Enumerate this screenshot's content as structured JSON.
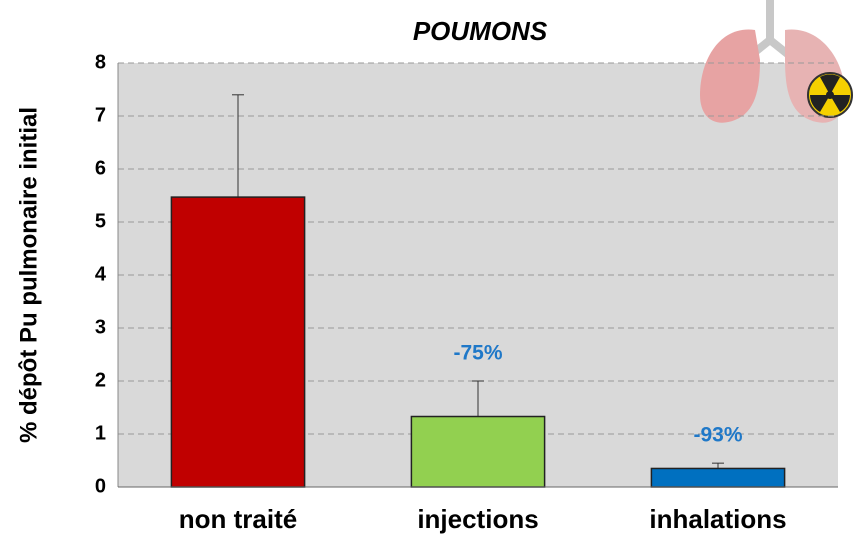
{
  "chart_data": {
    "type": "bar",
    "title": "POUMONS",
    "y_label": "% dépôt Pu pulmonaire initial",
    "categories": [
      "non traité",
      "injections",
      "inhalations"
    ],
    "values": [
      5.47,
      1.33,
      0.35
    ],
    "errors": [
      1.93,
      0.67,
      0.1
    ],
    "colors": [
      "#c00000",
      "#92d050",
      "#0070c0"
    ],
    "annotations": [
      null,
      "-75%",
      "-93%"
    ],
    "ylim": [
      0,
      8
    ],
    "yticks": [
      0,
      1,
      2,
      3,
      4,
      5,
      6,
      7,
      8
    ],
    "grid": true
  }
}
